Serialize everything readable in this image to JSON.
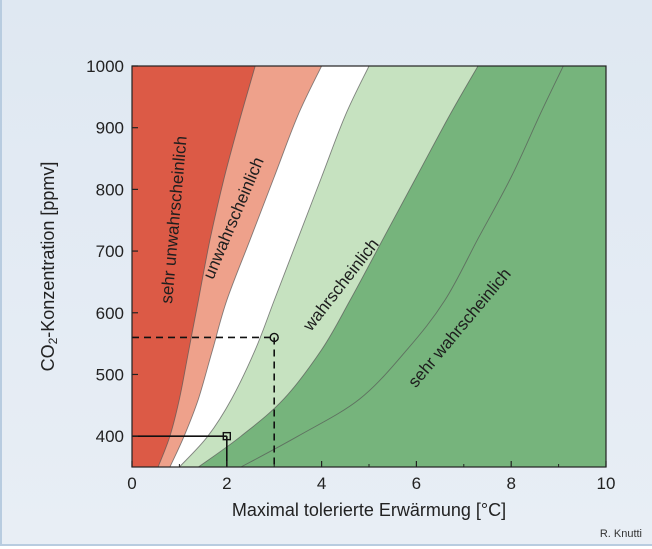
{
  "chart_data": {
    "type": "area",
    "xlabel": "Maximal tolerierte Erwärmung [°C]",
    "ylabel": {
      "prefix": "CO",
      "subscript": "2",
      "suffix": "-Konzentration [ppmv]"
    },
    "xlim": [
      0,
      10
    ],
    "ylim": [
      350,
      1000
    ],
    "xticks": [
      0,
      2,
      4,
      6,
      8,
      10
    ],
    "yticks": [
      400,
      500,
      600,
      700,
      800,
      900,
      1000
    ],
    "credit": "R. Knutti",
    "regions": [
      {
        "name": "sehr unwahrscheinlich",
        "color": "#dc5a46"
      },
      {
        "name": "unwahrscheinlich",
        "color": "#eea18b"
      },
      {
        "name": "",
        "color": "#ffffff"
      },
      {
        "name": "wahrscheinlich",
        "color": "#c6e2c0"
      },
      {
        "name": "sehr wahrscheinlich",
        "color": "#76b47c"
      }
    ],
    "boundaries": [
      {
        "name": "b1",
        "points": [
          [
            0.55,
            350
          ],
          [
            0.8,
            400
          ],
          [
            1.0,
            460
          ],
          [
            1.2,
            540
          ],
          [
            1.4,
            620
          ],
          [
            1.65,
            720
          ],
          [
            1.95,
            820
          ],
          [
            2.3,
            920
          ],
          [
            2.6,
            1000
          ]
        ]
      },
      {
        "name": "b2",
        "points": [
          [
            0.8,
            350
          ],
          [
            1.1,
            400
          ],
          [
            1.4,
            460
          ],
          [
            1.7,
            540
          ],
          [
            2.0,
            620
          ],
          [
            2.5,
            720
          ],
          [
            3.0,
            820
          ],
          [
            3.5,
            920
          ],
          [
            4.0,
            1000
          ]
        ]
      },
      {
        "name": "b3",
        "points": [
          [
            1.0,
            350
          ],
          [
            1.6,
            400
          ],
          [
            2.1,
            460
          ],
          [
            2.6,
            540
          ],
          [
            3.0,
            620
          ],
          [
            3.5,
            720
          ],
          [
            4.0,
            820
          ],
          [
            4.5,
            920
          ],
          [
            5.0,
            1000
          ]
        ]
      },
      {
        "name": "b4",
        "points": [
          [
            1.4,
            350
          ],
          [
            2.3,
            400
          ],
          [
            3.2,
            460
          ],
          [
            4.0,
            540
          ],
          [
            4.6,
            620
          ],
          [
            5.3,
            720
          ],
          [
            6.0,
            820
          ],
          [
            6.7,
            920
          ],
          [
            7.3,
            1000
          ]
        ]
      },
      {
        "name": "b5",
        "points": [
          [
            2.3,
            350
          ],
          [
            3.5,
            400
          ],
          [
            4.8,
            460
          ],
          [
            5.8,
            540
          ],
          [
            6.6,
            620
          ],
          [
            7.3,
            720
          ],
          [
            8.0,
            820
          ],
          [
            8.6,
            920
          ],
          [
            9.1,
            1000
          ]
        ]
      }
    ],
    "markers": [
      {
        "name": "point-2C-400ppmv",
        "x": 2,
        "y": 400,
        "shape": "square",
        "linestyle": "solid"
      },
      {
        "name": "point-3C-560ppmv",
        "x": 3,
        "y": 560,
        "shape": "circle",
        "linestyle": "dashed"
      }
    ],
    "labels": [
      {
        "text": "sehr unwahrscheinlich",
        "x": 1.0,
        "y": 750,
        "angle": -85
      },
      {
        "text": "unwahrscheinlich",
        "x": 2.25,
        "y": 750,
        "angle": -67
      },
      {
        "text": "wahrscheinlich",
        "x": 4.5,
        "y": 640,
        "angle": -52
      },
      {
        "text": "sehr wahrscheinlich",
        "x": 7.0,
        "y": 570,
        "angle": -50
      }
    ]
  }
}
